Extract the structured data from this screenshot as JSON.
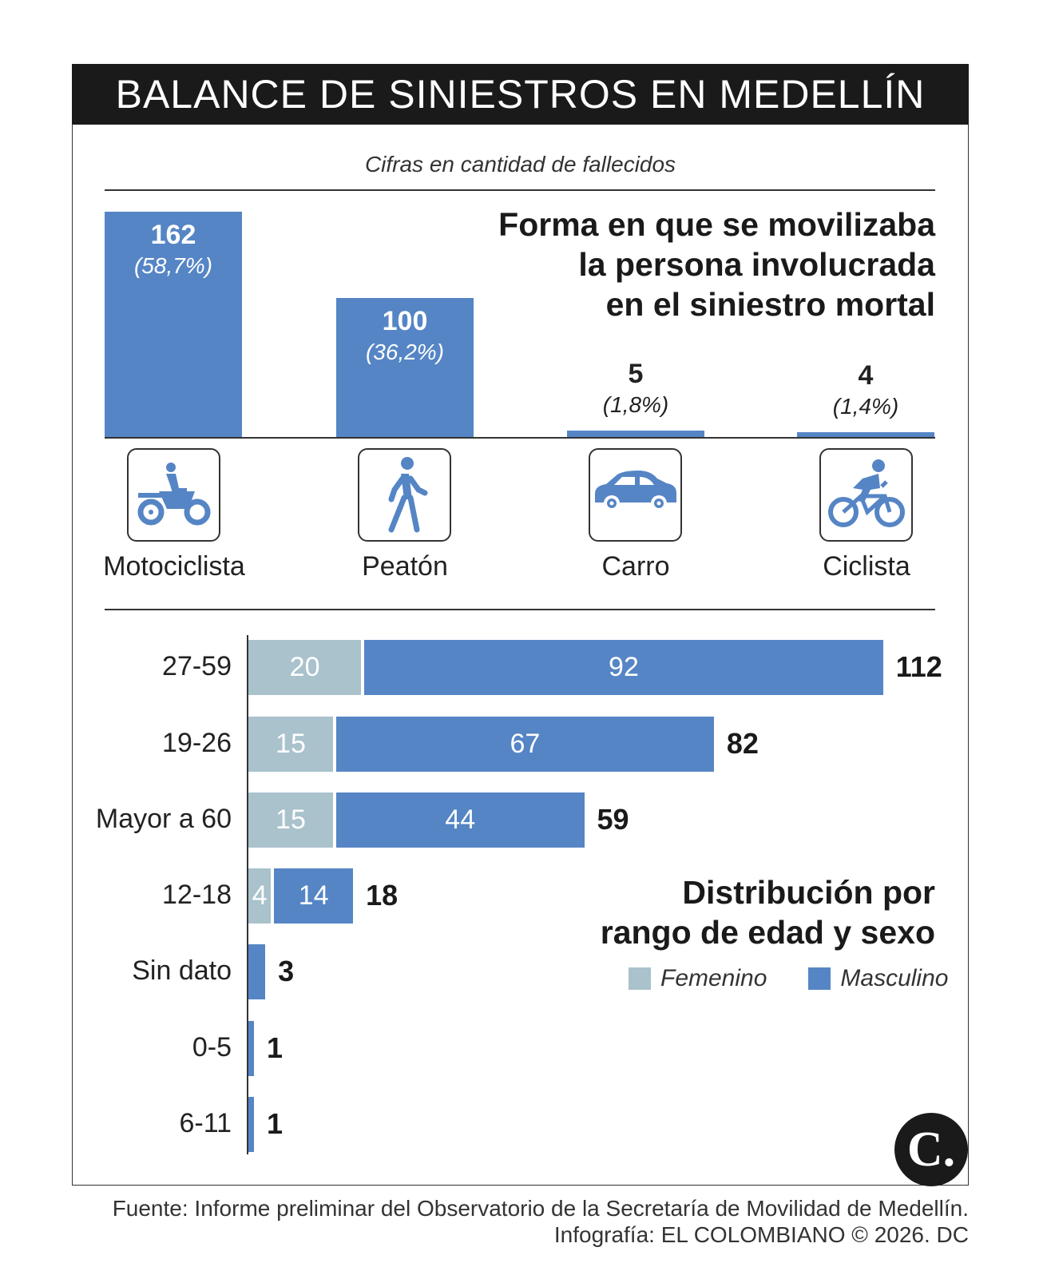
{
  "header": {
    "title": "BALANCE DE SINIESTROS EN MEDELLÍN"
  },
  "subtitle": "Cifras en cantidad de fallecidos",
  "colors": {
    "masculino": "#5585c5",
    "femenino": "#a9c2cc",
    "header_bg": "#1a1a1a"
  },
  "chart_data": [
    {
      "type": "bar",
      "title": "Forma en que se movilizaba la persona involucrada en el siniestro mortal",
      "title_lines": [
        "Forma en que se movilizaba",
        "la persona involucrada",
        "en el siniestro mortal"
      ],
      "categories": [
        "Motociclista",
        "Peatón",
        "Carro",
        "Ciclista"
      ],
      "values": [
        162,
        100,
        5,
        4
      ],
      "percent_labels": [
        "(58,7%)",
        "(36,2%)",
        "(1,8%)",
        "(1,4%)"
      ],
      "value_labels": [
        "162",
        "100",
        "5",
        "4"
      ],
      "icons": [
        "motorcycle-icon",
        "pedestrian-icon",
        "car-icon",
        "bicycle-icon"
      ],
      "grid": false
    },
    {
      "type": "bar",
      "orientation": "horizontal",
      "stacked": true,
      "title_lines": [
        "Distribución por",
        "rango de edad y sexo"
      ],
      "categories": [
        "27-59",
        "19-26",
        "Mayor a 60",
        "12-18",
        "Sin dato",
        "0-5",
        "6-11"
      ],
      "series": [
        {
          "name": "Femenino",
          "values": [
            20,
            15,
            15,
            4,
            0,
            0,
            0
          ]
        },
        {
          "name": "Masculino",
          "values": [
            92,
            67,
            44,
            14,
            3,
            1,
            1
          ]
        }
      ],
      "totals": [
        112,
        82,
        59,
        18,
        3,
        1,
        1
      ],
      "legend": "bottom-right",
      "grid": false
    }
  ],
  "footer": {
    "source": "Fuente: Informe preliminar del Observatorio de la Secretaría de Movilidad de Medellín.",
    "credit": "Infografía: EL COLOMBIANO © 2026. DC"
  },
  "logo": {
    "text": "C."
  }
}
